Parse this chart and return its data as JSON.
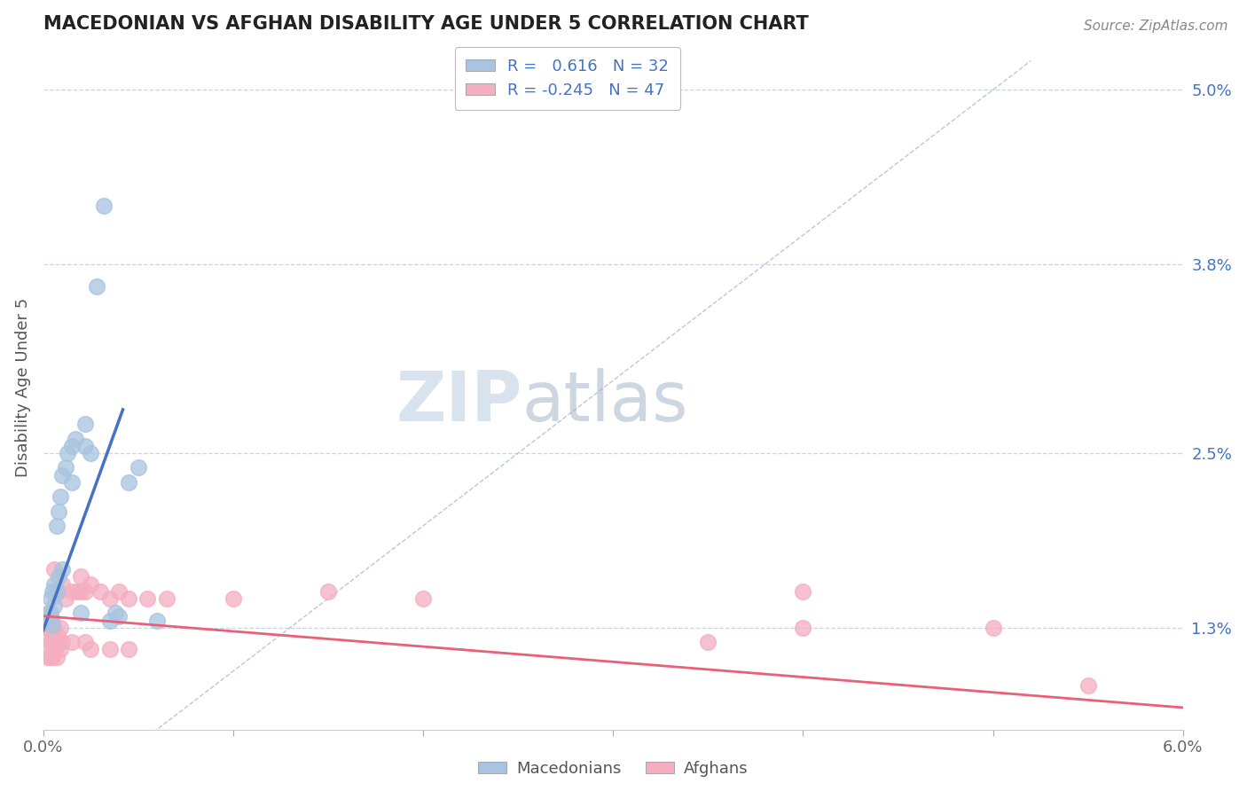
{
  "title": "MACEDONIAN VS AFGHAN DISABILITY AGE UNDER 5 CORRELATION CHART",
  "source": "Source: ZipAtlas.com",
  "ylabel": "Disability Age Under 5",
  "xlim": [
    0.0,
    6.0
  ],
  "ylim": [
    0.6,
    5.3
  ],
  "yticks_right": [
    1.3,
    2.5,
    3.8,
    5.0
  ],
  "ytick_labels_right": [
    "1.3%",
    "2.5%",
    "3.8%",
    "5.0%"
  ],
  "mac_R": 0.616,
  "mac_N": 32,
  "afg_R": -0.245,
  "afg_N": 47,
  "mac_color": "#a8c4e0",
  "afg_color": "#f4aec0",
  "mac_line_color": "#4472c4",
  "afg_line_color": "#e8607a",
  "diag_line_color": "#b0b8c8",
  "mac_dots": [
    [
      0.02,
      1.35
    ],
    [
      0.03,
      1.4
    ],
    [
      0.04,
      1.38
    ],
    [
      0.04,
      1.5
    ],
    [
      0.05,
      1.32
    ],
    [
      0.05,
      1.55
    ],
    [
      0.06,
      1.45
    ],
    [
      0.06,
      1.6
    ],
    [
      0.07,
      1.55
    ],
    [
      0.07,
      2.0
    ],
    [
      0.08,
      1.65
    ],
    [
      0.08,
      2.1
    ],
    [
      0.09,
      2.2
    ],
    [
      0.1,
      1.7
    ],
    [
      0.1,
      2.35
    ],
    [
      0.12,
      2.4
    ],
    [
      0.13,
      2.5
    ],
    [
      0.15,
      2.3
    ],
    [
      0.15,
      2.55
    ],
    [
      0.17,
      2.6
    ],
    [
      0.2,
      1.4
    ],
    [
      0.22,
      2.55
    ],
    [
      0.22,
      2.7
    ],
    [
      0.25,
      2.5
    ],
    [
      0.28,
      3.65
    ],
    [
      0.32,
      4.2
    ],
    [
      0.35,
      1.35
    ],
    [
      0.38,
      1.4
    ],
    [
      0.4,
      1.38
    ],
    [
      0.45,
      2.3
    ],
    [
      0.5,
      2.4
    ],
    [
      0.6,
      1.35
    ]
  ],
  "afg_dots": [
    [
      0.02,
      1.1
    ],
    [
      0.02,
      1.25
    ],
    [
      0.03,
      1.15
    ],
    [
      0.03,
      1.3
    ],
    [
      0.04,
      1.1
    ],
    [
      0.04,
      1.2
    ],
    [
      0.04,
      1.4
    ],
    [
      0.05,
      1.1
    ],
    [
      0.05,
      1.25
    ],
    [
      0.05,
      1.35
    ],
    [
      0.06,
      1.15
    ],
    [
      0.06,
      1.3
    ],
    [
      0.06,
      1.7
    ],
    [
      0.07,
      1.1
    ],
    [
      0.07,
      1.25
    ],
    [
      0.08,
      1.2
    ],
    [
      0.08,
      1.55
    ],
    [
      0.09,
      1.15
    ],
    [
      0.09,
      1.3
    ],
    [
      0.1,
      1.2
    ],
    [
      0.1,
      1.6
    ],
    [
      0.12,
      1.5
    ],
    [
      0.15,
      1.2
    ],
    [
      0.15,
      1.55
    ],
    [
      0.18,
      1.55
    ],
    [
      0.2,
      1.55
    ],
    [
      0.2,
      1.65
    ],
    [
      0.22,
      1.2
    ],
    [
      0.22,
      1.55
    ],
    [
      0.25,
      1.15
    ],
    [
      0.25,
      1.6
    ],
    [
      0.3,
      1.55
    ],
    [
      0.35,
      1.15
    ],
    [
      0.35,
      1.5
    ],
    [
      0.4,
      1.55
    ],
    [
      0.45,
      1.15
    ],
    [
      0.45,
      1.5
    ],
    [
      0.55,
      1.5
    ],
    [
      0.65,
      1.5
    ],
    [
      1.0,
      1.5
    ],
    [
      1.5,
      1.55
    ],
    [
      2.0,
      1.5
    ],
    [
      3.5,
      1.2
    ],
    [
      4.0,
      1.3
    ],
    [
      4.0,
      1.55
    ],
    [
      5.0,
      1.3
    ],
    [
      5.5,
      0.9
    ]
  ],
  "watermark_zip": "ZIP",
  "watermark_atlas": "atlas",
  "background_color": "#ffffff",
  "grid_color": "#c8d4e8"
}
